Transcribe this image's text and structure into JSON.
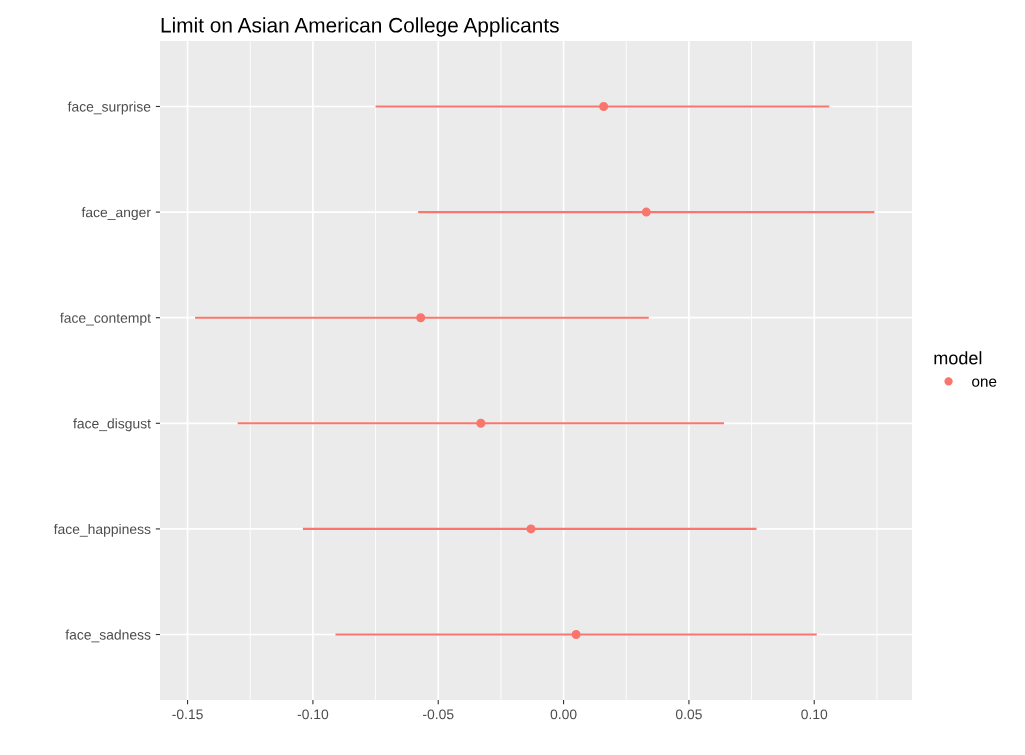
{
  "chart_data": {
    "type": "scatter",
    "orientation": "horizontal",
    "title": "Limit on Asian American College Applicants",
    "categories": [
      "face_surprise",
      "face_anger",
      "face_contempt",
      "face_disgust",
      "face_happiness",
      "face_sadness"
    ],
    "series": [
      {
        "name": "one",
        "color": "#f8766d",
        "values": [
          0.016,
          0.033,
          -0.057,
          -0.033,
          -0.013,
          0.005
        ],
        "errors": [
          [
            -0.075,
            0.106
          ],
          [
            -0.058,
            0.124
          ],
          [
            -0.147,
            0.034
          ],
          [
            -0.13,
            0.064
          ],
          [
            -0.104,
            0.077
          ],
          [
            -0.091,
            0.101
          ]
        ]
      }
    ],
    "xlim": [
      -0.161,
      0.139
    ],
    "xticks": [
      {
        "value": -0.15,
        "label": "-0.15"
      },
      {
        "value": -0.1,
        "label": "-0.10"
      },
      {
        "value": -0.05,
        "label": "-0.05"
      },
      {
        "value": 0,
        "label": "0.00"
      },
      {
        "value": 0.05,
        "label": "0.05"
      },
      {
        "value": 0.1,
        "label": "0.10"
      }
    ],
    "legend_title": "model",
    "legend": "right",
    "grid": true,
    "marker": "circle"
  }
}
